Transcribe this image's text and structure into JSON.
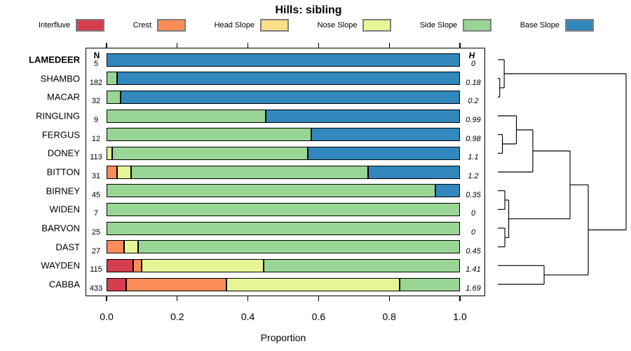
{
  "title": "Hills: sibling",
  "columns": {
    "n_header": "N",
    "h_header": "H"
  },
  "legend": [
    {
      "label": "Interfluve",
      "color": "#D53E4F"
    },
    {
      "label": "Crest",
      "color": "#FC8D59"
    },
    {
      "label": "Head Slope",
      "color": "#FEE08B"
    },
    {
      "label": "Nose Slope",
      "color": "#E6F598"
    },
    {
      "label": "Side Slope",
      "color": "#99D594"
    },
    {
      "label": "Base Slope",
      "color": "#3288BD"
    }
  ],
  "chart_data": {
    "type": "bar",
    "orientation": "horizontal",
    "stacked": true,
    "title": "Hills: sibling",
    "xlabel": "Proportion",
    "xlim": [
      0,
      1
    ],
    "xticks": [
      "0.0",
      "0.2",
      "0.4",
      "0.6",
      "0.8",
      "1.0"
    ],
    "grid": false,
    "categories": [
      "Interfluve",
      "Crest",
      "Head Slope",
      "Nose Slope",
      "Side Slope",
      "Base Slope"
    ],
    "colors": [
      "#D53E4F",
      "#FC8D59",
      "#FEE08B",
      "#E6F598",
      "#99D594",
      "#3288BD"
    ],
    "rows": [
      {
        "label": "LAMEDEER",
        "bold": true,
        "n": 5,
        "h": "0",
        "values": [
          0,
          0,
          0,
          0,
          0,
          1.0
        ]
      },
      {
        "label": "SHAMBO",
        "n": 182,
        "h": "0.18",
        "values": [
          0,
          0,
          0,
          0,
          0.03,
          0.97
        ]
      },
      {
        "label": "MACAR",
        "n": 32,
        "h": "0.2",
        "values": [
          0,
          0,
          0,
          0,
          0.04,
          0.96
        ]
      },
      {
        "label": "RINGLING",
        "n": 9,
        "h": "0.99",
        "values": [
          0,
          0,
          0,
          0,
          0.45,
          0.55
        ]
      },
      {
        "label": "FERGUS",
        "n": 12,
        "h": "0.98",
        "values": [
          0,
          0,
          0,
          0,
          0.58,
          0.42
        ]
      },
      {
        "label": "DONEY",
        "n": 113,
        "h": "1.1",
        "values": [
          0,
          0,
          0,
          0.015,
          0.555,
          0.43
        ]
      },
      {
        "label": "BITTON",
        "n": 31,
        "h": "1.2",
        "values": [
          0,
          0.03,
          0,
          0.04,
          0.67,
          0.26
        ]
      },
      {
        "label": "BIRNEY",
        "n": 45,
        "h": "0.35",
        "values": [
          0,
          0,
          0,
          0,
          0.93,
          0.07
        ]
      },
      {
        "label": "WIDEN",
        "n": 7,
        "h": "0",
        "values": [
          0,
          0,
          0,
          0,
          1.0,
          0
        ]
      },
      {
        "label": "BARVON",
        "n": 25,
        "h": "0",
        "values": [
          0,
          0,
          0,
          0,
          1.0,
          0
        ]
      },
      {
        "label": "DAST",
        "n": 27,
        "h": "0.45",
        "values": [
          0,
          0.05,
          0,
          0.04,
          0.91,
          0
        ]
      },
      {
        "label": "WAYDEN",
        "n": 115,
        "h": "1.41",
        "values": [
          0.075,
          0.025,
          0,
          0.345,
          0.555,
          0
        ]
      },
      {
        "label": "CABBA",
        "n": 433,
        "h": "1.69",
        "values": [
          0.055,
          0.285,
          0,
          0.49,
          0.17,
          0
        ]
      }
    ],
    "dendrogram": {
      "note": "sideways cluster tree, leaves align with bar rows, unlabeled height axis (normalized 0-1)",
      "merges": [
        {
          "id": "m1",
          "children": [
            "SHAMBO",
            "MACAR"
          ],
          "height": 0.015
        },
        {
          "id": "m2",
          "children": [
            "LAMEDEER",
            "m1"
          ],
          "height": 0.05
        },
        {
          "id": "m3",
          "children": [
            "FERGUS",
            "DONEY"
          ],
          "height": 0.036
        },
        {
          "id": "m4",
          "children": [
            "RINGLING",
            "m3"
          ],
          "height": 0.145
        },
        {
          "id": "m5",
          "children": [
            "m4",
            "BITTON"
          ],
          "height": 0.273
        },
        {
          "id": "m6",
          "children": [
            "BIRNEY",
            "WIDEN"
          ],
          "height": 0.055
        },
        {
          "id": "m7",
          "children": [
            "BARVON",
            "DAST"
          ],
          "height": 0.055
        },
        {
          "id": "m8",
          "children": [
            "m6",
            "m7"
          ],
          "height": 0.085
        },
        {
          "id": "m9",
          "children": [
            "m5",
            "m8"
          ],
          "height": 0.563
        },
        {
          "id": "m10",
          "children": [
            "WAYDEN",
            "CABBA"
          ],
          "height": 0.361
        },
        {
          "id": "m11",
          "children": [
            "m9",
            "m10"
          ],
          "height": 0.705
        },
        {
          "id": "m12",
          "children": [
            "m2",
            "m11"
          ],
          "height": 1.0
        }
      ]
    }
  }
}
